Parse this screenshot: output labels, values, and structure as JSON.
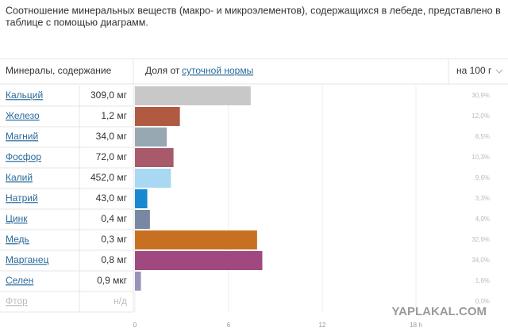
{
  "intro": [
    "Соотношение минеральных веществ (макро- и микроэлементов), содержащихся в лебеде, представлено в",
    "таблице с помощью диаграмм."
  ],
  "header": {
    "minerals": "Минералы, содержание",
    "share": "Доля от",
    "share_link": "суточной нормы",
    "per": "на 100 г"
  },
  "chart_data": {
    "type": "bar",
    "orientation": "horizontal",
    "categories": [
      "Кальций",
      "Железо",
      "Магний",
      "Фосфор",
      "Калий",
      "Натрий",
      "Цинк",
      "Медь",
      "Марганец",
      "Селен",
      "Фтор"
    ],
    "amounts": [
      "309,0 мг",
      "1,2 мг",
      "34,0 мг",
      "72,0 мг",
      "452,0 мг",
      "43,0 мг",
      "0,4 мг",
      "0,3 мг",
      "0,8 мг",
      "0,9 мкг",
      "н/д"
    ],
    "values": [
      30.9,
      12.0,
      8.5,
      10.3,
      9.6,
      3.3,
      4.0,
      32.6,
      34.0,
      1.6,
      0.0
    ],
    "value_labels": [
      "30,9%",
      "12,0%",
      "8,5%",
      "10,3%",
      "9,6%",
      "3,3%",
      "4,0%",
      "32,6%",
      "34,0%",
      "1,6%",
      "0,0%"
    ],
    "colors": [
      "#c8c8c8",
      "#b05a42",
      "#98a8b2",
      "#a85a6c",
      "#a8d8f2",
      "#1a88d0",
      "#7888a2",
      "#c87022",
      "#a04880",
      "#9a92ba",
      "#cccccc"
    ],
    "xlim": [
      0,
      100
    ],
    "xticks": [
      0,
      {
        "value": 25,
        "label": "6"
      },
      {
        "value": 50,
        "label": "12"
      },
      {
        "value": 75,
        "label": "18 h"
      }
    ],
    "grid": true
  },
  "watermark": "YAPLAKAL.COM"
}
